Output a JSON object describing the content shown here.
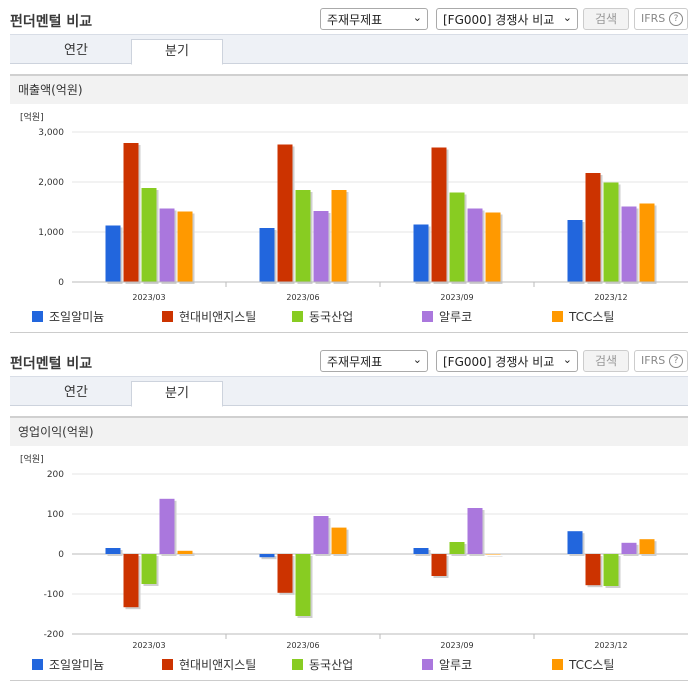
{
  "panels": [
    {
      "title": "펀더멘털 비교",
      "select1": "주재무제표",
      "select2": "[FG000] 경쟁사 비교",
      "search_label": "검색",
      "ifrs_label": "IFRS",
      "ifrs_help": "?",
      "tabs": [
        "연간",
        "분기"
      ],
      "active_tab": 1,
      "metric_label": "매출액(억원)",
      "chart_data": {
        "type": "bar",
        "unit": "[억원]",
        "categories": [
          "2023/03",
          "2023/06",
          "2023/09",
          "2023/12"
        ],
        "ylim": [
          0,
          3000
        ],
        "yticks": [
          0,
          1000,
          2000,
          3000
        ],
        "ytick_labels": [
          "0",
          "1,000",
          "2,000",
          "3,000"
        ],
        "grid": true,
        "legend_position": "bottom",
        "series": [
          {
            "name": "조일알미늄",
            "color": "#2266dd",
            "values": [
              1130,
              1080,
              1150,
              1240
            ]
          },
          {
            "name": "현대비앤지스틸",
            "color": "#cc3300",
            "values": [
              2780,
              2750,
              2690,
              2180
            ]
          },
          {
            "name": "동국산업",
            "color": "#88cc22",
            "values": [
              1880,
              1840,
              1790,
              1990
            ]
          },
          {
            "name": "알루코",
            "color": "#aa77dd",
            "values": [
              1470,
              1420,
              1470,
              1510
            ]
          },
          {
            "name": "TCC스틸",
            "color": "#ff9900",
            "values": [
              1410,
              1840,
              1390,
              1570
            ]
          }
        ]
      }
    },
    {
      "title": "펀더멘털 비교",
      "select1": "주재무제표",
      "select2": "[FG000] 경쟁사 비교",
      "search_label": "검색",
      "ifrs_label": "IFRS",
      "ifrs_help": "?",
      "tabs": [
        "연간",
        "분기"
      ],
      "active_tab": 1,
      "metric_label": "영업이익(억원)",
      "chart_data": {
        "type": "bar",
        "unit": "[억원]",
        "categories": [
          "2023/03",
          "2023/06",
          "2023/09",
          "2023/12"
        ],
        "ylim": [
          -200,
          200
        ],
        "yticks": [
          -200,
          -100,
          0,
          100,
          200
        ],
        "ytick_labels": [
          "-200",
          "-100",
          "0",
          "100",
          "200"
        ],
        "grid": true,
        "legend_position": "bottom",
        "series": [
          {
            "name": "조일알미늄",
            "color": "#2266dd",
            "values": [
              15,
              -8,
              15,
              57
            ]
          },
          {
            "name": "현대비앤지스틸",
            "color": "#cc3300",
            "values": [
              -133,
              -97,
              -55,
              -78
            ]
          },
          {
            "name": "동국산업",
            "color": "#88cc22",
            "values": [
              -75,
              -155,
              30,
              -80
            ]
          },
          {
            "name": "알루코",
            "color": "#aa77dd",
            "values": [
              138,
              95,
              115,
              28
            ]
          },
          {
            "name": "TCC스틸",
            "color": "#ff9900",
            "values": [
              8,
              66,
              0,
              37
            ]
          }
        ]
      }
    }
  ]
}
